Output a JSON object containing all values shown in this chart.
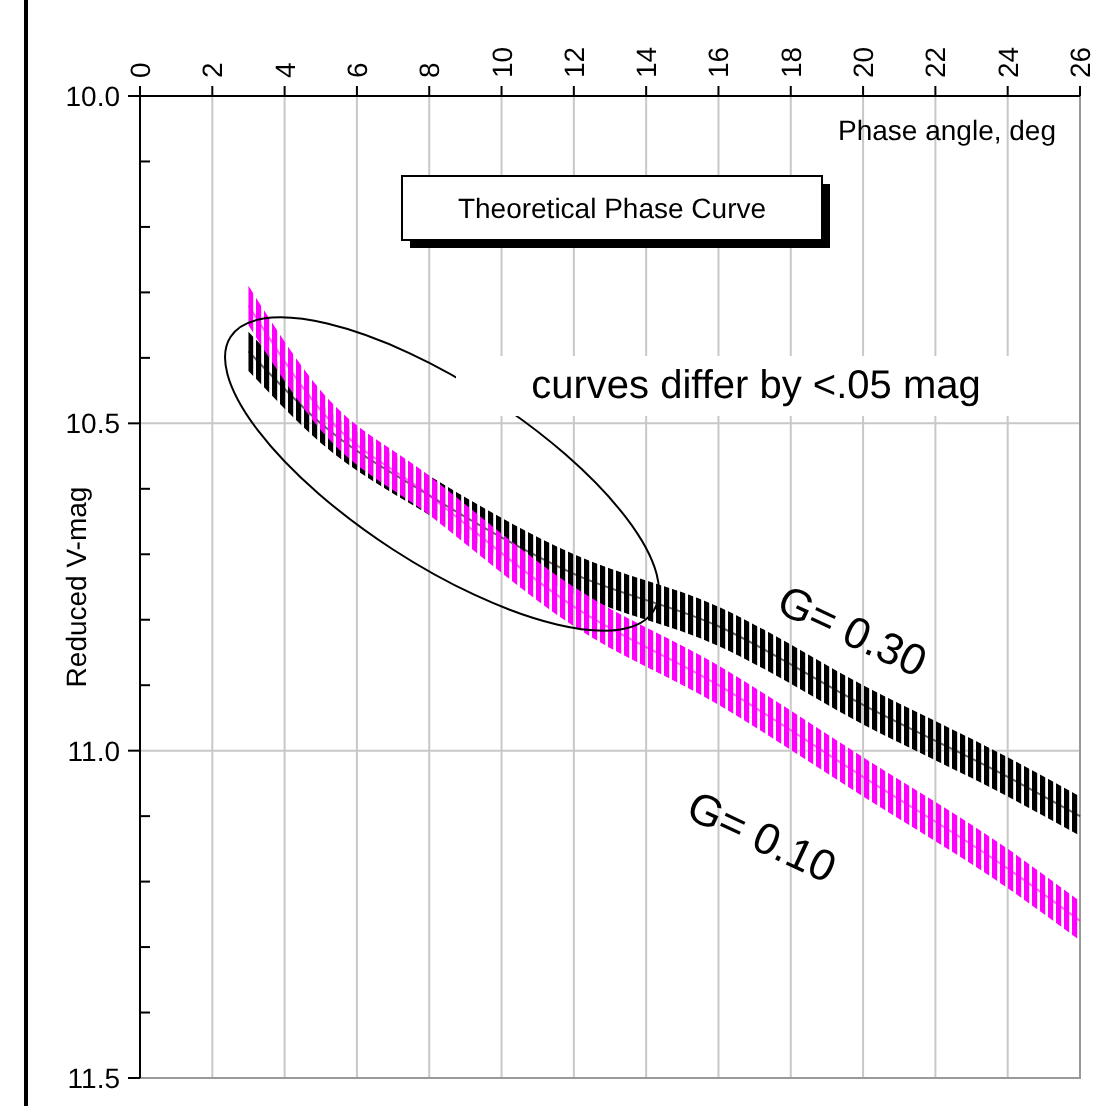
{
  "chart_data": {
    "type": "line",
    "title": "Theoretical Phase Curve",
    "xlabel": "Phase angle, deg",
    "ylabel": "Reduced V-mag",
    "annotations": [
      "curves differ by <.05 mag"
    ],
    "xlim": [
      0,
      26
    ],
    "xticks": [
      0,
      2,
      4,
      6,
      8,
      10,
      12,
      14,
      16,
      18,
      20,
      22,
      24,
      26
    ],
    "ylim": [
      11.5,
      10.0
    ],
    "yticks": [
      {
        "value": 10.0,
        "label": "10.0"
      },
      {
        "value": 10.1,
        "label": null
      },
      {
        "value": 10.2,
        "label": null
      },
      {
        "value": 10.3,
        "label": null
      },
      {
        "value": 10.4,
        "label": null
      },
      {
        "value": 10.5,
        "label": "10.5"
      },
      {
        "value": 10.6,
        "label": null
      },
      {
        "value": 10.7,
        "label": null
      },
      {
        "value": 10.8,
        "label": null
      },
      {
        "value": 10.9,
        "label": null
      },
      {
        "value": 11.0,
        "label": "11.0"
      },
      {
        "value": 11.1,
        "label": null
      },
      {
        "value": 11.2,
        "label": null
      },
      {
        "value": 11.3,
        "label": null
      },
      {
        "value": 11.4,
        "label": null
      },
      {
        "value": 11.5,
        "label": "11.5"
      }
    ],
    "grid": true,
    "series": [
      {
        "name": "G= 0.30",
        "color": "#000000",
        "x": [
          3,
          5,
          8,
          12,
          16,
          20,
          24,
          26
        ],
        "values": [
          10.39,
          10.5,
          10.61,
          10.73,
          10.81,
          10.93,
          11.04,
          11.1
        ],
        "lower": [
          10.36,
          10.47,
          10.58,
          10.7,
          10.78,
          10.9,
          11.01,
          11.07
        ],
        "upper": [
          10.42,
          10.53,
          10.64,
          10.76,
          10.84,
          10.96,
          11.07,
          11.13
        ]
      },
      {
        "name": "G= 0.10",
        "color": "#ff00ff",
        "x": [
          3,
          5,
          8,
          12,
          16,
          20,
          24,
          26
        ],
        "values": [
          10.32,
          10.48,
          10.61,
          10.78,
          10.9,
          11.04,
          11.18,
          11.26
        ],
        "lower": [
          10.29,
          10.45,
          10.58,
          10.75,
          10.87,
          11.01,
          11.15,
          11.23
        ],
        "upper": [
          10.35,
          10.51,
          10.64,
          10.81,
          10.93,
          11.07,
          11.21,
          11.29
        ]
      }
    ]
  }
}
